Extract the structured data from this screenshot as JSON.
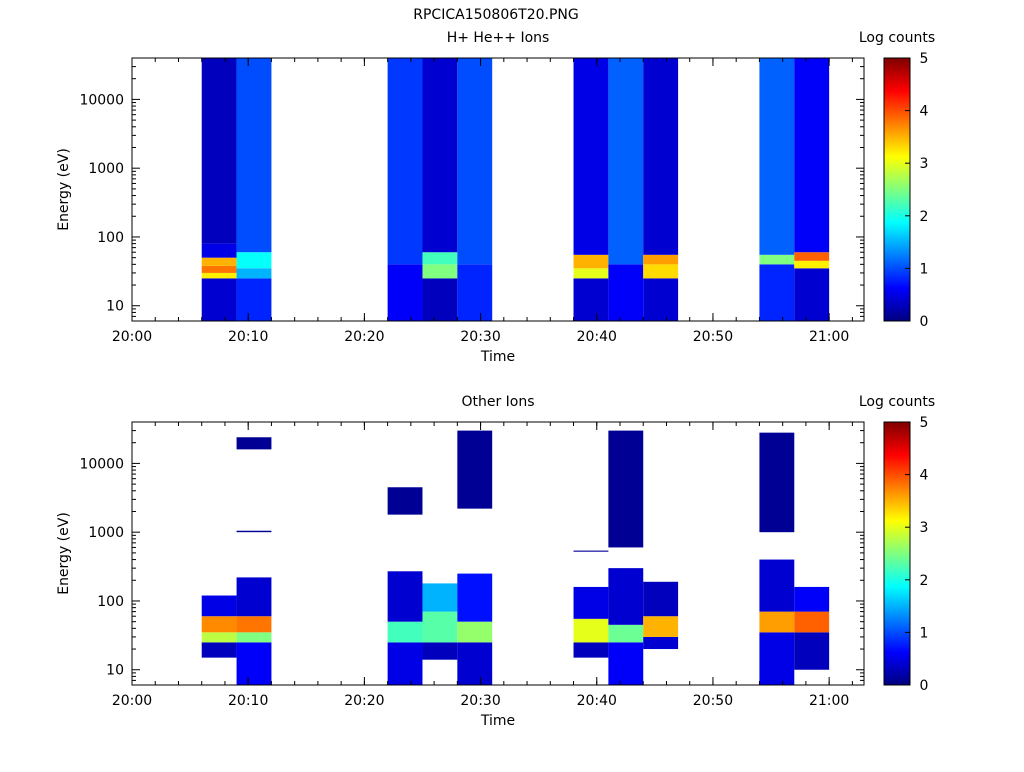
{
  "page_title": "RPCICA150806T20.PNG",
  "chart_data": [
    {
      "type": "heatmap",
      "title": "H+ He++ Ions",
      "xlabel": "Time",
      "ylabel": "Energy (eV)",
      "y_scale": "log",
      "ylim": [
        6,
        40000
      ],
      "xlim": [
        "20:00",
        "21:03"
      ],
      "x_ticks": [
        "20:00",
        "20:10",
        "20:20",
        "20:30",
        "20:40",
        "20:50",
        "21:00"
      ],
      "y_ticks": [
        "10",
        "100",
        "1000",
        "10000"
      ],
      "colorbar": {
        "label": "Log counts",
        "min": 0,
        "max": 5,
        "ticks": [
          "0",
          "1",
          "2",
          "3",
          "4",
          "5"
        ]
      },
      "columns": [
        {
          "t_start": "20:06",
          "t_end": "20:09",
          "e_low": 6,
          "e_high": 40000,
          "counts": [
            {
              "e_low": 6,
              "e_high": 25,
              "log_counts": 0.4
            },
            {
              "e_low": 25,
              "e_high": 30,
              "log_counts": 3.2
            },
            {
              "e_low": 30,
              "e_high": 38,
              "log_counts": 3.8
            },
            {
              "e_low": 38,
              "e_high": 50,
              "log_counts": 3.5
            },
            {
              "e_low": 50,
              "e_high": 80,
              "log_counts": 0.5
            },
            {
              "e_low": 80,
              "e_high": 40000,
              "log_counts": 0.3
            }
          ]
        },
        {
          "t_start": "20:09",
          "t_end": "20:12",
          "e_low": 6,
          "e_high": 40000,
          "counts": [
            {
              "e_low": 6,
              "e_high": 25,
              "log_counts": 0.8
            },
            {
              "e_low": 25,
              "e_high": 35,
              "log_counts": 1.5
            },
            {
              "e_low": 35,
              "e_high": 60,
              "log_counts": 1.9
            },
            {
              "e_low": 60,
              "e_high": 40000,
              "log_counts": 1.0
            }
          ]
        },
        {
          "t_start": "20:22",
          "t_end": "20:25",
          "e_low": 6,
          "e_high": 40000,
          "counts": [
            {
              "e_low": 6,
              "e_high": 40,
              "log_counts": 0.6
            },
            {
              "e_low": 40,
              "e_high": 40000,
              "log_counts": 0.9
            }
          ]
        },
        {
          "t_start": "20:25",
          "t_end": "20:28",
          "e_low": 6,
          "e_high": 40000,
          "counts": [
            {
              "e_low": 6,
              "e_high": 25,
              "log_counts": 0.3
            },
            {
              "e_low": 25,
              "e_high": 40,
              "log_counts": 2.5
            },
            {
              "e_low": 40,
              "e_high": 60,
              "log_counts": 2.2
            },
            {
              "e_low": 60,
              "e_high": 40000,
              "log_counts": 0.4
            }
          ]
        },
        {
          "t_start": "20:28",
          "t_end": "20:31",
          "e_low": 6,
          "e_high": 40000,
          "counts": [
            {
              "e_low": 6,
              "e_high": 40,
              "log_counts": 0.8
            },
            {
              "e_low": 40,
              "e_high": 40000,
              "log_counts": 1.0
            }
          ]
        },
        {
          "t_start": "20:38",
          "t_end": "20:41",
          "e_low": 6,
          "e_high": 40000,
          "counts": [
            {
              "e_low": 6,
              "e_high": 25,
              "log_counts": 0.4
            },
            {
              "e_low": 25,
              "e_high": 35,
              "log_counts": 3.0
            },
            {
              "e_low": 35,
              "e_high": 55,
              "log_counts": 3.5
            },
            {
              "e_low": 55,
              "e_high": 40000,
              "log_counts": 0.5
            }
          ]
        },
        {
          "t_start": "20:41",
          "t_end": "20:44",
          "e_low": 6,
          "e_high": 40000,
          "counts": [
            {
              "e_low": 6,
              "e_high": 40,
              "log_counts": 0.6
            },
            {
              "e_low": 40,
              "e_high": 40000,
              "log_counts": 1.1
            }
          ]
        },
        {
          "t_start": "20:44",
          "t_end": "20:47",
          "e_low": 6,
          "e_high": 40000,
          "counts": [
            {
              "e_low": 6,
              "e_high": 25,
              "log_counts": 0.4
            },
            {
              "e_low": 25,
              "e_high": 40,
              "log_counts": 3.3
            },
            {
              "e_low": 40,
              "e_high": 55,
              "log_counts": 3.6
            },
            {
              "e_low": 55,
              "e_high": 40000,
              "log_counts": 0.4
            }
          ]
        },
        {
          "t_start": "20:54",
          "t_end": "20:57",
          "e_low": 6,
          "e_high": 40000,
          "counts": [
            {
              "e_low": 6,
              "e_high": 40,
              "log_counts": 0.8
            },
            {
              "e_low": 40,
              "e_high": 55,
              "log_counts": 2.5
            },
            {
              "e_low": 55,
              "e_high": 40000,
              "log_counts": 1.1
            }
          ]
        },
        {
          "t_start": "20:57",
          "t_end": "21:00",
          "e_low": 6,
          "e_high": 40000,
          "counts": [
            {
              "e_low": 6,
              "e_high": 35,
              "log_counts": 0.4
            },
            {
              "e_low": 35,
              "e_high": 45,
              "log_counts": 3.2
            },
            {
              "e_low": 45,
              "e_high": 60,
              "log_counts": 3.9
            },
            {
              "e_low": 60,
              "e_high": 40000,
              "log_counts": 0.6
            }
          ]
        }
      ]
    },
    {
      "type": "heatmap",
      "title": "Other Ions",
      "xlabel": "Time",
      "ylabel": "Energy (eV)",
      "y_scale": "log",
      "ylim": [
        6,
        40000
      ],
      "xlim": [
        "20:00",
        "21:03"
      ],
      "x_ticks": [
        "20:00",
        "20:10",
        "20:20",
        "20:30",
        "20:40",
        "20:50",
        "21:00"
      ],
      "y_ticks": [
        "10",
        "100",
        "1000",
        "10000"
      ],
      "colorbar": {
        "label": "Log counts",
        "min": 0,
        "max": 5,
        "ticks": [
          "0",
          "1",
          "2",
          "3",
          "4",
          "5"
        ]
      },
      "columns": [
        {
          "t_start": "20:06",
          "t_end": "20:09",
          "counts": [
            {
              "e_low": 15,
              "e_high": 25,
              "log_counts": 0.3
            },
            {
              "e_low": 25,
              "e_high": 35,
              "log_counts": 2.8
            },
            {
              "e_low": 35,
              "e_high": 60,
              "log_counts": 3.7
            },
            {
              "e_low": 60,
              "e_high": 120,
              "log_counts": 0.5
            }
          ]
        },
        {
          "t_start": "20:09",
          "t_end": "20:12",
          "counts": [
            {
              "e_low": 6,
              "e_high": 25,
              "log_counts": 0.6
            },
            {
              "e_low": 25,
              "e_high": 35,
              "log_counts": 2.5
            },
            {
              "e_low": 35,
              "e_high": 60,
              "log_counts": 3.8
            },
            {
              "e_low": 60,
              "e_high": 220,
              "log_counts": 0.4
            },
            {
              "e_low": 1000,
              "e_high": 1050,
              "log_counts": 0.1
            },
            {
              "e_low": 16000,
              "e_high": 24000,
              "log_counts": 0.1
            }
          ]
        },
        {
          "t_start": "20:22",
          "t_end": "20:25",
          "counts": [
            {
              "e_low": 6,
              "e_high": 25,
              "log_counts": 0.5
            },
            {
              "e_low": 25,
              "e_high": 50,
              "log_counts": 2.2
            },
            {
              "e_low": 50,
              "e_high": 270,
              "log_counts": 0.4
            },
            {
              "e_low": 1800,
              "e_high": 4500,
              "log_counts": 0.1
            }
          ]
        },
        {
          "t_start": "20:25",
          "t_end": "20:28",
          "counts": [
            {
              "e_low": 14,
              "e_high": 25,
              "log_counts": 0.3
            },
            {
              "e_low": 25,
              "e_high": 70,
              "log_counts": 2.3
            },
            {
              "e_low": 70,
              "e_high": 180,
              "log_counts": 1.5
            }
          ]
        },
        {
          "t_start": "20:28",
          "t_end": "20:31",
          "counts": [
            {
              "e_low": 6,
              "e_high": 25,
              "log_counts": 0.4
            },
            {
              "e_low": 25,
              "e_high": 50,
              "log_counts": 2.6
            },
            {
              "e_low": 50,
              "e_high": 250,
              "log_counts": 0.7
            },
            {
              "e_low": 2200,
              "e_high": 30000,
              "log_counts": 0.1
            }
          ]
        },
        {
          "t_start": "20:38",
          "t_end": "20:41",
          "counts": [
            {
              "e_low": 15,
              "e_high": 25,
              "log_counts": 0.3
            },
            {
              "e_low": 25,
              "e_high": 55,
              "log_counts": 3.0
            },
            {
              "e_low": 55,
              "e_high": 160,
              "log_counts": 0.5
            },
            {
              "e_low": 520,
              "e_high": 540,
              "log_counts": 0.1
            }
          ]
        },
        {
          "t_start": "20:41",
          "t_end": "20:44",
          "counts": [
            {
              "e_low": 6,
              "e_high": 25,
              "log_counts": 0.6
            },
            {
              "e_low": 25,
              "e_high": 45,
              "log_counts": 2.4
            },
            {
              "e_low": 45,
              "e_high": 300,
              "log_counts": 0.4
            },
            {
              "e_low": 600,
              "e_high": 30000,
              "log_counts": 0.1
            }
          ]
        },
        {
          "t_start": "20:44",
          "t_end": "20:47",
          "counts": [
            {
              "e_low": 20,
              "e_high": 30,
              "log_counts": 0.4
            },
            {
              "e_low": 30,
              "e_high": 60,
              "log_counts": 3.5
            },
            {
              "e_low": 60,
              "e_high": 190,
              "log_counts": 0.3
            }
          ]
        },
        {
          "t_start": "20:54",
          "t_end": "20:57",
          "counts": [
            {
              "e_low": 6,
              "e_high": 35,
              "log_counts": 0.5
            },
            {
              "e_low": 35,
              "e_high": 70,
              "log_counts": 3.6
            },
            {
              "e_low": 70,
              "e_high": 400,
              "log_counts": 0.4
            },
            {
              "e_low": 1000,
              "e_high": 28000,
              "log_counts": 0.1
            }
          ]
        },
        {
          "t_start": "20:57",
          "t_end": "21:00",
          "counts": [
            {
              "e_low": 10,
              "e_high": 35,
              "log_counts": 0.3
            },
            {
              "e_low": 35,
              "e_high": 70,
              "log_counts": 3.9
            },
            {
              "e_low": 70,
              "e_high": 160,
              "log_counts": 0.6
            }
          ]
        }
      ]
    }
  ]
}
